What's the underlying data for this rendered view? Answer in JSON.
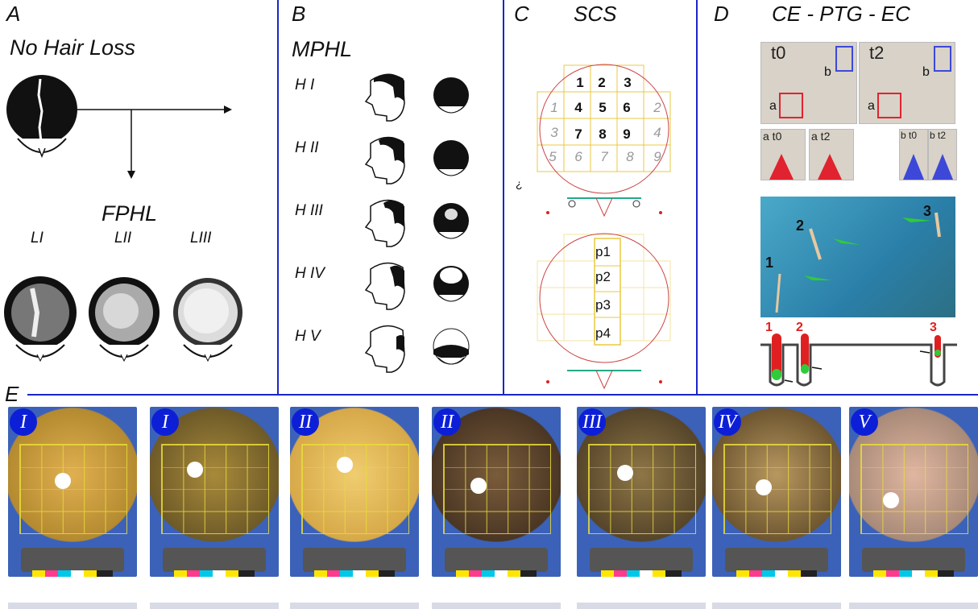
{
  "panel_a": {
    "letter": "A",
    "title": "No Hair Loss",
    "fphl_title": "FPHL",
    "fphl_levels": [
      "LI",
      "LII",
      "LIII"
    ]
  },
  "panel_b": {
    "letter": "B",
    "title": "MPHL",
    "stages": [
      "H I",
      "H II",
      "H III",
      "H IV",
      "H V"
    ]
  },
  "panel_c": {
    "letter": "C",
    "title": "SCS",
    "grid_row1": [
      "1",
      "2",
      "3"
    ],
    "grid_row2": [
      "1",
      "4",
      "5",
      "6",
      "2"
    ],
    "grid_row3": [
      "3",
      "7",
      "8",
      "9",
      "4"
    ],
    "grid_row4": [
      "5",
      "6",
      "7",
      "8",
      "9"
    ],
    "strip": [
      "p1",
      "p2",
      "p3",
      "p4"
    ],
    "stray_mark": "¿"
  },
  "panel_d": {
    "letter": "D",
    "title": "CE - PTG - EC",
    "times": [
      "t0",
      "t2"
    ],
    "region_labels": [
      "a",
      "b"
    ],
    "thumbs": [
      "a t0",
      "a t2",
      "b t0",
      "b t2"
    ],
    "hair_numbers": [
      "1",
      "2",
      "3"
    ],
    "diagram_numbers": [
      "1",
      "2",
      "3"
    ],
    "colors": {
      "box_a": "#e0232f",
      "box_b": "#3d48d8",
      "arrow_green": "#2ecb3a",
      "hair_red": "#e02020"
    }
  },
  "panel_e": {
    "letter": "E",
    "badges": [
      "I",
      "I",
      "II",
      "II",
      "III",
      "IV",
      "V"
    ]
  },
  "colors": {
    "divider": "#1b25c9",
    "badge": "#0d1fd6",
    "grid": "#e9dc3a"
  }
}
